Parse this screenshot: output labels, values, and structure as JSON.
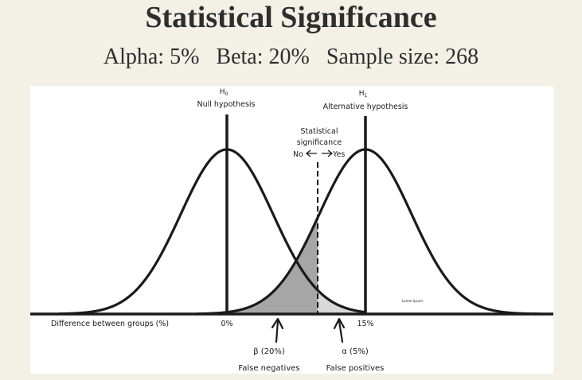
{
  "header": {
    "title": "Statistical Significance",
    "alpha_label": "Alpha:",
    "alpha_value": "5%",
    "beta_label": "Beta:",
    "beta_value": "20%",
    "sample_label": "Sample size:",
    "sample_value": "268"
  },
  "diagram": {
    "h0_symbol": "H",
    "h0_sub": "0",
    "h0_label": "Null hypothesis",
    "h1_symbol": "H",
    "h1_sub": "1",
    "h1_label": "Alternative hypothesis",
    "significance_line1": "Statistical",
    "significance_line2": "significance",
    "no_label": "No",
    "yes_label": "Yes",
    "axis_label": "Difference between groups (%)",
    "tick_zero": "0%",
    "tick_effect": "15%",
    "beta_annotation": "β (20%)",
    "beta_caption": "False negatives",
    "alpha_annotation": "α (5%)",
    "alpha_caption": "False positives",
    "watermark": "Lorem Ipsum",
    "colors": {
      "curve": "#1a1a1a",
      "beta_fill": "#a6a6a6",
      "alpha_fill": "#d9d9d9",
      "panel": "#ffffff",
      "background": "#f3f0e6"
    }
  }
}
